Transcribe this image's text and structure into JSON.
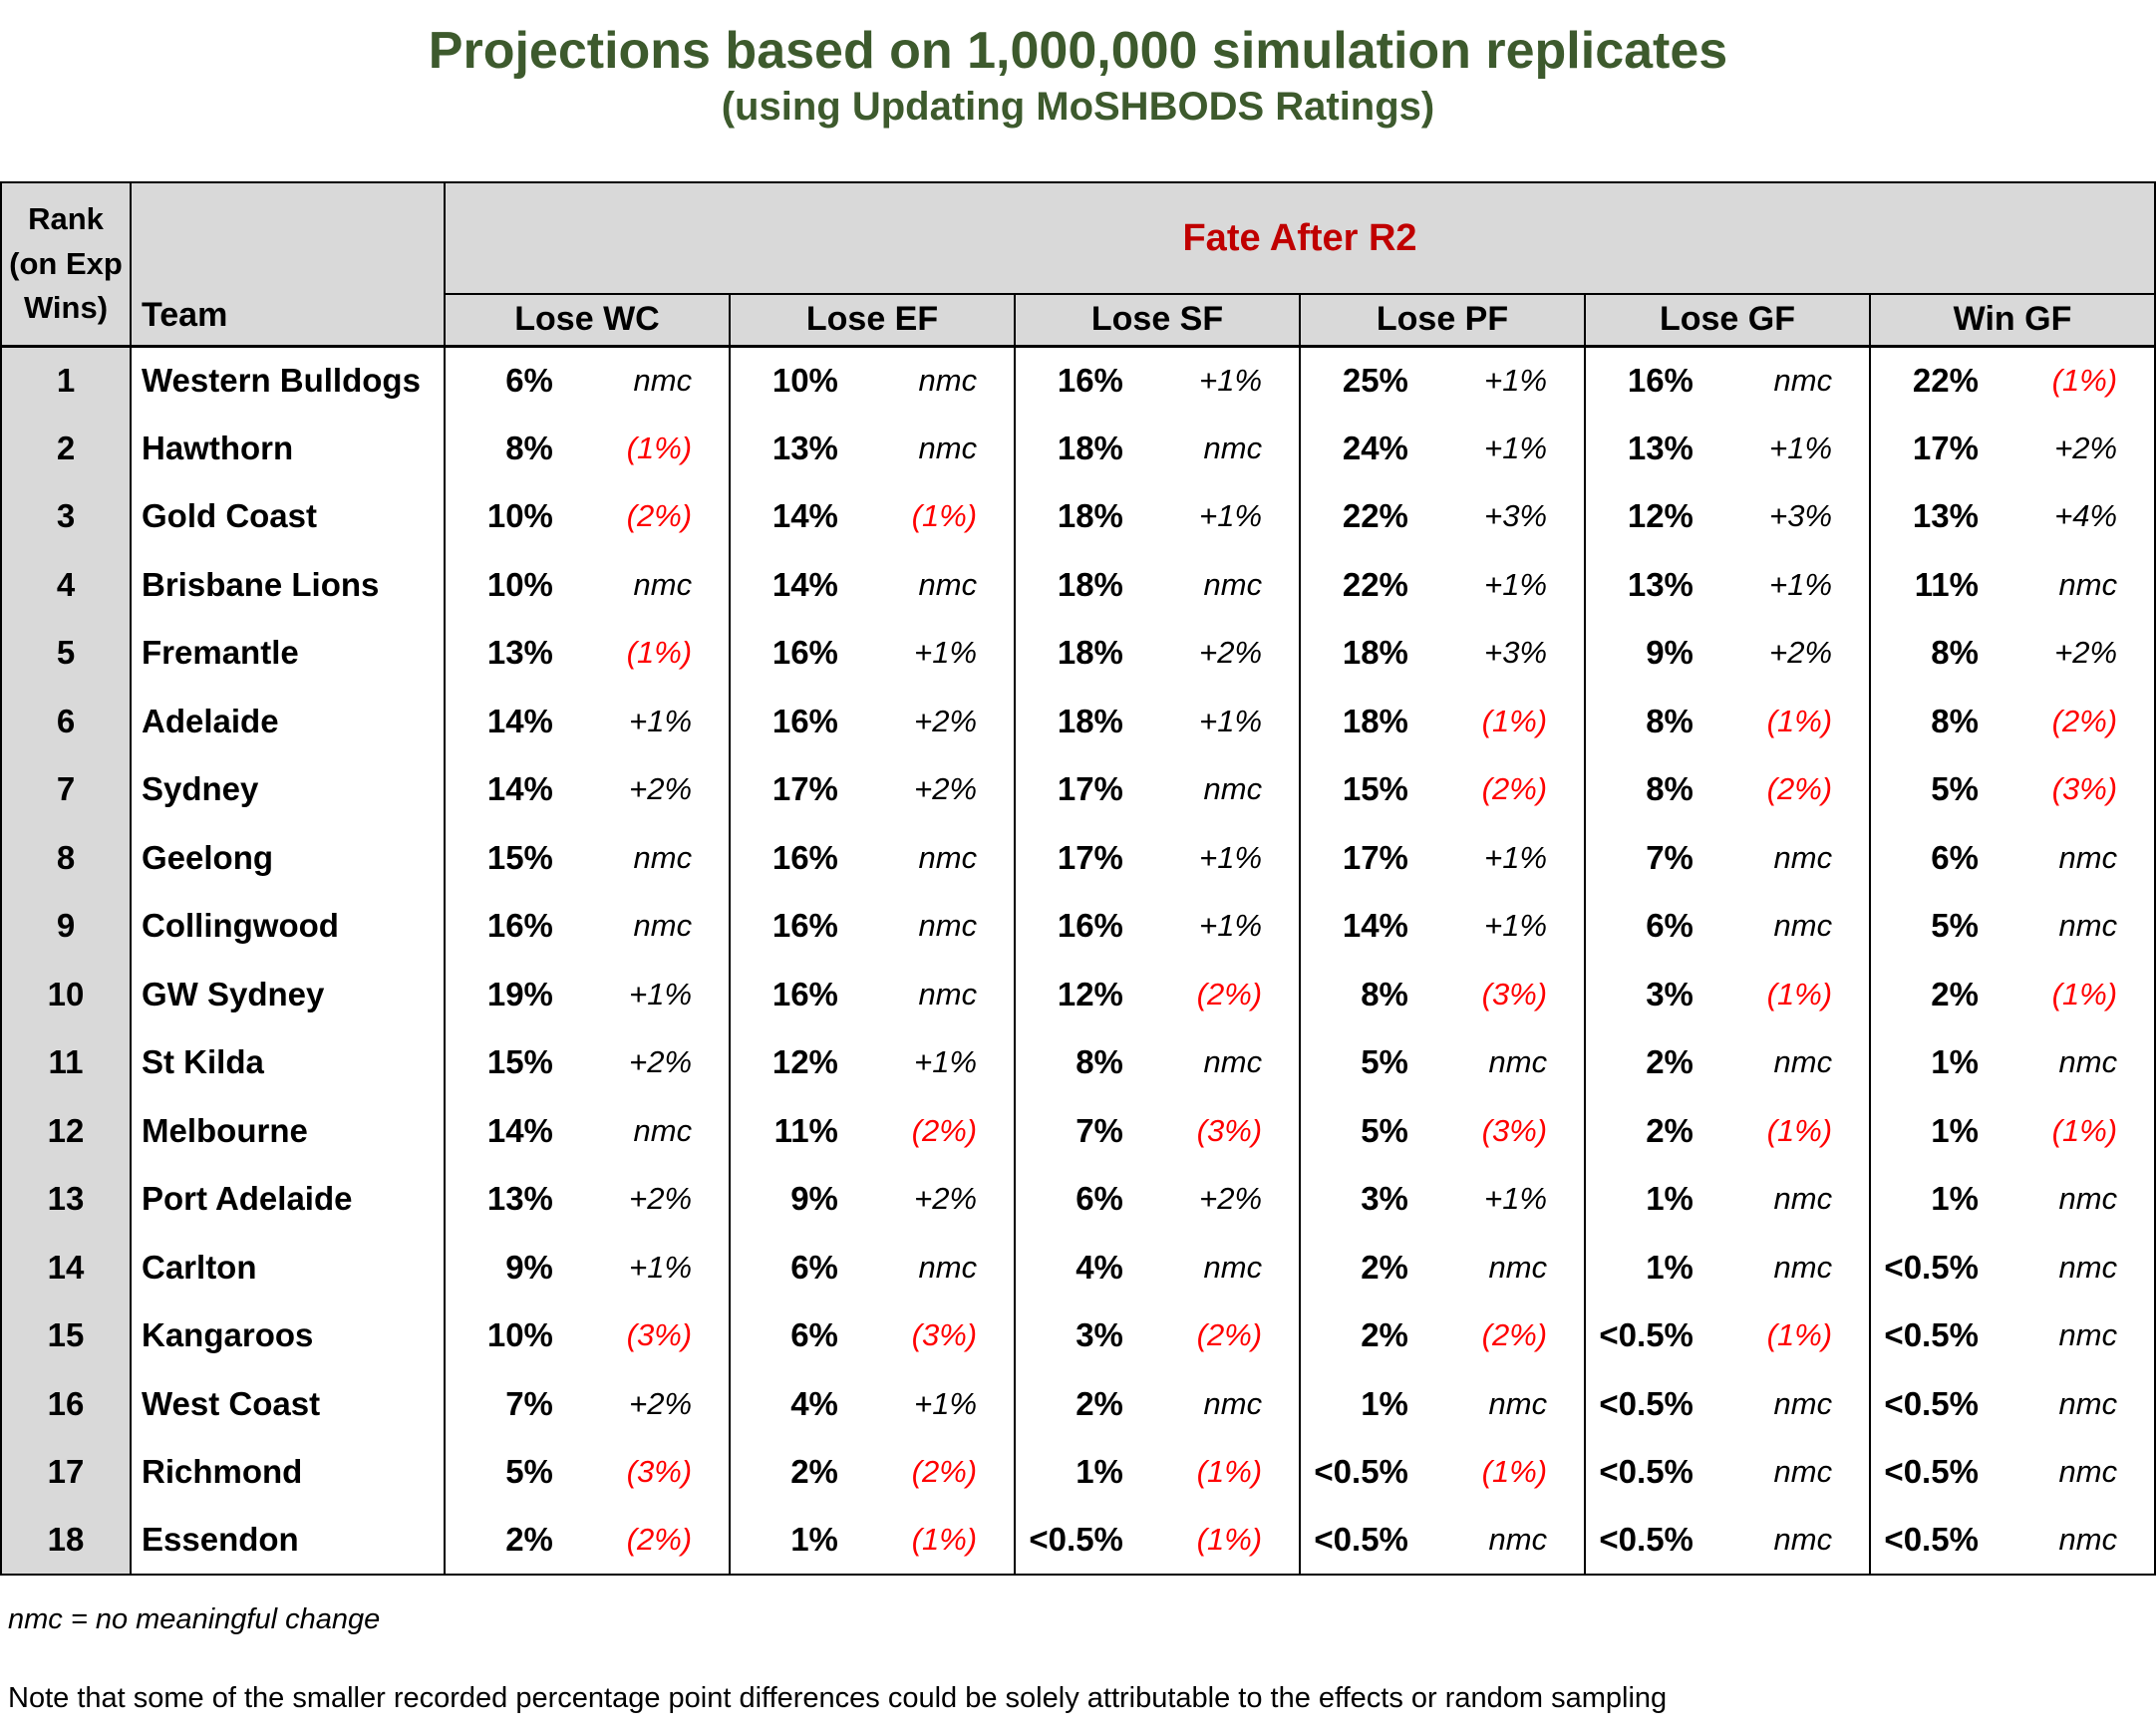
{
  "page": {
    "title": "Projections based on 1,000,000 simulation replicates",
    "subtitle": "(using Updating MoSHBODS Ratings)"
  },
  "colors": {
    "title_green": "#3D5A2D",
    "fate_header_red": "#C00000",
    "negative_change_red": "#FF0000",
    "header_gray": "#D9D9D9"
  },
  "table": {
    "rank_header": {
      "line1": "Rank",
      "line2": "(on Exp Wins)"
    },
    "team_header": "Team",
    "fate_header": "Fate After R2"
  },
  "chart_data": {
    "type": "table",
    "title": "Projections based on 1,000,000 simulation replicates",
    "subtitle": "(using Updating MoSHBODS Ratings)",
    "group_header": "Fate After R2",
    "columns": [
      "Lose WC",
      "Lose EF",
      "Lose SF",
      "Lose PF",
      "Lose GF",
      "Win GF"
    ],
    "cell_format": [
      "probability",
      "change_vs_previous (parenthesised = decrease, shown red)"
    ],
    "rows": [
      {
        "rank": "1",
        "team": "Western Bulldogs",
        "cells": [
          [
            "6%",
            "nmc"
          ],
          [
            "10%",
            "nmc"
          ],
          [
            "16%",
            "+1%"
          ],
          [
            "25%",
            "+1%"
          ],
          [
            "16%",
            "nmc"
          ],
          [
            "22%",
            "(1%)"
          ]
        ]
      },
      {
        "rank": "2",
        "team": "Hawthorn",
        "cells": [
          [
            "8%",
            "(1%)"
          ],
          [
            "13%",
            "nmc"
          ],
          [
            "18%",
            "nmc"
          ],
          [
            "24%",
            "+1%"
          ],
          [
            "13%",
            "+1%"
          ],
          [
            "17%",
            "+2%"
          ]
        ]
      },
      {
        "rank": "3",
        "team": "Gold Coast",
        "cells": [
          [
            "10%",
            "(2%)"
          ],
          [
            "14%",
            "(1%)"
          ],
          [
            "18%",
            "+1%"
          ],
          [
            "22%",
            "+3%"
          ],
          [
            "12%",
            "+3%"
          ],
          [
            "13%",
            "+4%"
          ]
        ]
      },
      {
        "rank": "4",
        "team": "Brisbane Lions",
        "cells": [
          [
            "10%",
            "nmc"
          ],
          [
            "14%",
            "nmc"
          ],
          [
            "18%",
            "nmc"
          ],
          [
            "22%",
            "+1%"
          ],
          [
            "13%",
            "+1%"
          ],
          [
            "11%",
            "nmc"
          ]
        ]
      },
      {
        "rank": "5",
        "team": "Fremantle",
        "cells": [
          [
            "13%",
            "(1%)"
          ],
          [
            "16%",
            "+1%"
          ],
          [
            "18%",
            "+2%"
          ],
          [
            "18%",
            "+3%"
          ],
          [
            "9%",
            "+2%"
          ],
          [
            "8%",
            "+2%"
          ]
        ]
      },
      {
        "rank": "6",
        "team": "Adelaide",
        "cells": [
          [
            "14%",
            "+1%"
          ],
          [
            "16%",
            "+2%"
          ],
          [
            "18%",
            "+1%"
          ],
          [
            "18%",
            "(1%)"
          ],
          [
            "8%",
            "(1%)"
          ],
          [
            "8%",
            "(2%)"
          ]
        ]
      },
      {
        "rank": "7",
        "team": "Sydney",
        "cells": [
          [
            "14%",
            "+2%"
          ],
          [
            "17%",
            "+2%"
          ],
          [
            "17%",
            "nmc"
          ],
          [
            "15%",
            "(2%)"
          ],
          [
            "8%",
            "(2%)"
          ],
          [
            "5%",
            "(3%)"
          ]
        ]
      },
      {
        "rank": "8",
        "team": "Geelong",
        "cells": [
          [
            "15%",
            "nmc"
          ],
          [
            "16%",
            "nmc"
          ],
          [
            "17%",
            "+1%"
          ],
          [
            "17%",
            "+1%"
          ],
          [
            "7%",
            "nmc"
          ],
          [
            "6%",
            "nmc"
          ]
        ]
      },
      {
        "rank": "9",
        "team": "Collingwood",
        "cells": [
          [
            "16%",
            "nmc"
          ],
          [
            "16%",
            "nmc"
          ],
          [
            "16%",
            "+1%"
          ],
          [
            "14%",
            "+1%"
          ],
          [
            "6%",
            "nmc"
          ],
          [
            "5%",
            "nmc"
          ]
        ]
      },
      {
        "rank": "10",
        "team": "GW Sydney",
        "cells": [
          [
            "19%",
            "+1%"
          ],
          [
            "16%",
            "nmc"
          ],
          [
            "12%",
            "(2%)"
          ],
          [
            "8%",
            "(3%)"
          ],
          [
            "3%",
            "(1%)"
          ],
          [
            "2%",
            "(1%)"
          ]
        ]
      },
      {
        "rank": "11",
        "team": "St Kilda",
        "cells": [
          [
            "15%",
            "+2%"
          ],
          [
            "12%",
            "+1%"
          ],
          [
            "8%",
            "nmc"
          ],
          [
            "5%",
            "nmc"
          ],
          [
            "2%",
            "nmc"
          ],
          [
            "1%",
            "nmc"
          ]
        ]
      },
      {
        "rank": "12",
        "team": "Melbourne",
        "cells": [
          [
            "14%",
            "nmc"
          ],
          [
            "11%",
            "(2%)"
          ],
          [
            "7%",
            "(3%)"
          ],
          [
            "5%",
            "(3%)"
          ],
          [
            "2%",
            "(1%)"
          ],
          [
            "1%",
            "(1%)"
          ]
        ]
      },
      {
        "rank": "13",
        "team": "Port Adelaide",
        "cells": [
          [
            "13%",
            "+2%"
          ],
          [
            "9%",
            "+2%"
          ],
          [
            "6%",
            "+2%"
          ],
          [
            "3%",
            "+1%"
          ],
          [
            "1%",
            "nmc"
          ],
          [
            "1%",
            "nmc"
          ]
        ]
      },
      {
        "rank": "14",
        "team": "Carlton",
        "cells": [
          [
            "9%",
            "+1%"
          ],
          [
            "6%",
            "nmc"
          ],
          [
            "4%",
            "nmc"
          ],
          [
            "2%",
            "nmc"
          ],
          [
            "1%",
            "nmc"
          ],
          [
            "<0.5%",
            "nmc"
          ]
        ]
      },
      {
        "rank": "15",
        "team": "Kangaroos",
        "cells": [
          [
            "10%",
            "(3%)"
          ],
          [
            "6%",
            "(3%)"
          ],
          [
            "3%",
            "(2%)"
          ],
          [
            "2%",
            "(2%)"
          ],
          [
            "<0.5%",
            "(1%)"
          ],
          [
            "<0.5%",
            "nmc"
          ]
        ]
      },
      {
        "rank": "16",
        "team": "West Coast",
        "cells": [
          [
            "7%",
            "+2%"
          ],
          [
            "4%",
            "+1%"
          ],
          [
            "2%",
            "nmc"
          ],
          [
            "1%",
            "nmc"
          ],
          [
            "<0.5%",
            "nmc"
          ],
          [
            "<0.5%",
            "nmc"
          ]
        ]
      },
      {
        "rank": "17",
        "team": "Richmond",
        "cells": [
          [
            "5%",
            "(3%)"
          ],
          [
            "2%",
            "(2%)"
          ],
          [
            "1%",
            "(1%)"
          ],
          [
            "<0.5%",
            "(1%)"
          ],
          [
            "<0.5%",
            "nmc"
          ],
          [
            "<0.5%",
            "nmc"
          ]
        ]
      },
      {
        "rank": "18",
        "team": "Essendon",
        "cells": [
          [
            "2%",
            "(2%)"
          ],
          [
            "1%",
            "(1%)"
          ],
          [
            "<0.5%",
            "(1%)"
          ],
          [
            "<0.5%",
            "nmc"
          ],
          [
            "<0.5%",
            "nmc"
          ],
          [
            "<0.5%",
            "nmc"
          ]
        ]
      }
    ]
  },
  "footnotes": {
    "nmc": "nmc = no meaningful change",
    "note": "Note that some of the smaller recorded percentage point differences could be solely attributable to the effects or random sampling"
  }
}
